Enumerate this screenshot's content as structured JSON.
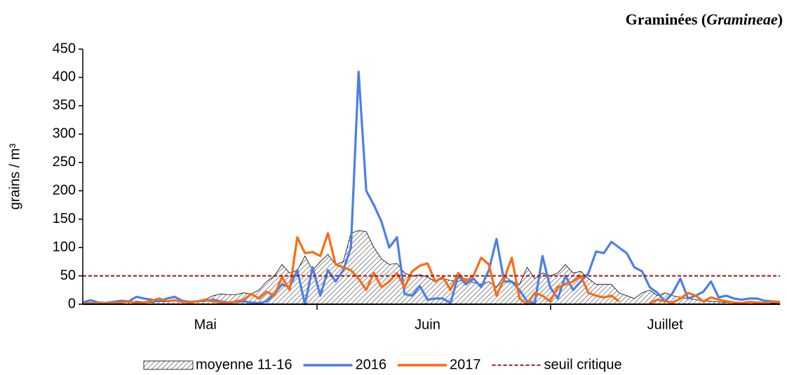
{
  "chart_data": {
    "type": "line",
    "title": [
      "Graminées (",
      "Gramineae",
      ")"
    ],
    "y_label": "grains / m³",
    "categories": [
      null,
      null,
      null,
      null,
      null,
      null,
      null,
      null,
      null,
      null,
      null,
      null,
      null,
      null,
      null,
      null,
      "Mai",
      null,
      null,
      null,
      null,
      null,
      null,
      null,
      null,
      null,
      null,
      null,
      null,
      null,
      null,
      null,
      null,
      null,
      null,
      null,
      null,
      null,
      null,
      null,
      null,
      null,
      null,
      null,
      null,
      "Juin",
      null,
      null,
      null,
      null,
      null,
      null,
      null,
      null,
      null,
      null,
      null,
      null,
      null,
      null,
      null,
      null,
      null,
      null,
      null,
      null,
      null,
      null,
      null,
      null,
      null,
      null,
      null,
      null,
      null,
      null,
      "Juillet",
      null,
      null,
      null,
      null,
      null,
      null,
      null,
      null,
      null,
      null,
      null,
      null,
      null,
      null,
      null
    ],
    "ylim": [
      0,
      450
    ],
    "yticks": [
      0,
      50,
      100,
      150,
      200,
      250,
      300,
      350,
      400,
      450
    ],
    "series": [
      {
        "name": "moyenne 11-16",
        "style": "area",
        "color": "#000000",
        "values": [
          2,
          3,
          2,
          3,
          2,
          4,
          3,
          5,
          4,
          3,
          5,
          4,
          6,
          5,
          4,
          6,
          8,
          15,
          18,
          17,
          17,
          20,
          18,
          25,
          40,
          50,
          70,
          55,
          60,
          85,
          60,
          75,
          88,
          70,
          75,
          125,
          130,
          128,
          100,
          80,
          70,
          72,
          55,
          50,
          52,
          48,
          40,
          45,
          42,
          40,
          45,
          38,
          35,
          40,
          30,
          50,
          40,
          35,
          65,
          45,
          55,
          50,
          55,
          70,
          55,
          58,
          45,
          35,
          35,
          35,
          20,
          15,
          10,
          20,
          25,
          15,
          20,
          15,
          12,
          10,
          8,
          6,
          5,
          4,
          3,
          3,
          2,
          3,
          2,
          2,
          2,
          1
        ]
      },
      {
        "name": "2016",
        "style": "line",
        "color": "#4a7fe8",
        "values": [
          3,
          7,
          3,
          2,
          4,
          6,
          5,
          13,
          10,
          8,
          5,
          10,
          13,
          6,
          4,
          5,
          6,
          8,
          5,
          3,
          4,
          5,
          3,
          2,
          5,
          18,
          35,
          30,
          60,
          0,
          65,
          15,
          60,
          40,
          60,
          100,
          410,
          200,
          175,
          145,
          100,
          118,
          18,
          15,
          32,
          8,
          10,
          10,
          2,
          50,
          35,
          45,
          30,
          60,
          115,
          40,
          40,
          25,
          5,
          2,
          85,
          30,
          10,
          50,
          25,
          40,
          55,
          93,
          90,
          110,
          100,
          90,
          65,
          58,
          30,
          20,
          5,
          20,
          45,
          10,
          15,
          22,
          40,
          12,
          15,
          10,
          8,
          10,
          10,
          6,
          5,
          4
        ]
      },
      {
        "name": "2017",
        "style": "line",
        "color": "#ff6a13",
        "values": [
          1,
          1,
          2,
          1,
          2,
          3,
          5,
          2,
          3,
          6,
          10,
          5,
          7,
          4,
          3,
          5,
          8,
          5,
          3,
          2,
          5,
          8,
          18,
          10,
          22,
          15,
          48,
          25,
          118,
          90,
          92,
          85,
          125,
          70,
          65,
          60,
          45,
          25,
          55,
          30,
          40,
          55,
          30,
          58,
          68,
          72,
          40,
          48,
          25,
          55,
          40,
          50,
          82,
          70,
          15,
          45,
          82,
          10,
          0,
          20,
          15,
          5,
          30,
          35,
          40,
          50,
          20,
          15,
          12,
          15,
          5,
          null,
          null,
          null,
          2,
          8,
          5,
          3,
          10,
          20,
          15,
          5,
          12,
          8,
          5,
          3,
          2,
          4,
          3,
          2,
          5,
          3
        ]
      }
    ],
    "reference_line": {
      "name": "seuil critique",
      "value": 50,
      "color": "#a00000"
    }
  }
}
